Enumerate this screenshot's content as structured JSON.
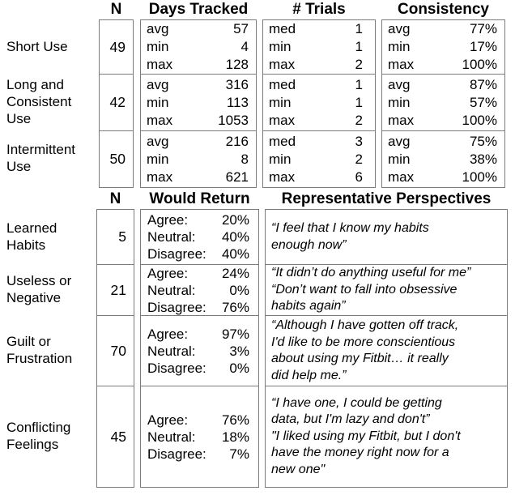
{
  "colors": {
    "background": "#ffffff",
    "text": "#000000",
    "border": "#7b7b7b"
  },
  "table1": {
    "headers": {
      "n": "N",
      "days": "Days Tracked",
      "trials": "# Trials",
      "consistency": "Consistency"
    },
    "rows": [
      {
        "label": "Short Use",
        "n": "49",
        "days": [
          {
            "k": "avg",
            "v": "57"
          },
          {
            "k": "min",
            "v": "4"
          },
          {
            "k": "max",
            "v": "128"
          }
        ],
        "trials": [
          {
            "k": "med",
            "v": "1"
          },
          {
            "k": "min",
            "v": "1"
          },
          {
            "k": "max",
            "v": "2"
          }
        ],
        "consistency": [
          {
            "k": "avg",
            "v": "77%"
          },
          {
            "k": "min",
            "v": "17%"
          },
          {
            "k": "max",
            "v": "100%"
          }
        ]
      },
      {
        "label": "Long and Consistent Use",
        "n": "42",
        "days": [
          {
            "k": "avg",
            "v": "316"
          },
          {
            "k": "min",
            "v": "113"
          },
          {
            "k": "max",
            "v": "1053"
          }
        ],
        "trials": [
          {
            "k": "med",
            "v": "1"
          },
          {
            "k": "min",
            "v": "1"
          },
          {
            "k": "max",
            "v": "2"
          }
        ],
        "consistency": [
          {
            "k": "avg",
            "v": "87%"
          },
          {
            "k": "min",
            "v": "57%"
          },
          {
            "k": "max",
            "v": "100%"
          }
        ]
      },
      {
        "label": "Intermittent Use",
        "n": "50",
        "days": [
          {
            "k": "avg",
            "v": "216"
          },
          {
            "k": "min",
            "v": "8"
          },
          {
            "k": "max",
            "v": "621"
          }
        ],
        "trials": [
          {
            "k": "med",
            "v": "3"
          },
          {
            "k": "min",
            "v": "2"
          },
          {
            "k": "max",
            "v": "6"
          }
        ],
        "consistency": [
          {
            "k": "avg",
            "v": "75%"
          },
          {
            "k": "min",
            "v": "38%"
          },
          {
            "k": "max",
            "v": "100%"
          }
        ]
      }
    ]
  },
  "table2": {
    "headers": {
      "n": "N",
      "would_return": "Would Return",
      "perspectives": "Representative Perspectives"
    },
    "rows": [
      {
        "label": "Learned Habits",
        "n": "5",
        "would_return": [
          {
            "k": "Agree:",
            "v": "20%"
          },
          {
            "k": "Neutral:",
            "v": "40%"
          },
          {
            "k": "Disagree:",
            "v": "40%"
          }
        ],
        "quotes": [
          [
            "“I feel that I know my habits",
            "enough now”"
          ]
        ]
      },
      {
        "label": "Useless or Negative",
        "n": "21",
        "would_return": [
          {
            "k": "Agree:",
            "v": "24%"
          },
          {
            "k": "Neutral:",
            "v": "0%"
          },
          {
            "k": "Disagree:",
            "v": "76%"
          }
        ],
        "quotes": [
          [
            "“It didn’t do anything useful for me”"
          ],
          [
            "“Don’t want to fall into obsessive",
            "habits again”"
          ]
        ]
      },
      {
        "label": "Guilt or Frustration",
        "n": "70",
        "would_return": [
          {
            "k": "Agree:",
            "v": "97%"
          },
          {
            "k": "Neutral:",
            "v": "3%"
          },
          {
            "k": "Disagree:",
            "v": "0%"
          }
        ],
        "quotes": [
          [
            "“Although I have gotten off track,",
            "I'd like to be more conscientious",
            "about using my Fitbit… it really",
            "did help me.”"
          ]
        ]
      },
      {
        "label": "Conflicting Feelings",
        "n": "45",
        "would_return": [
          {
            "k": "Agree:",
            "v": "76%"
          },
          {
            "k": "Neutral:",
            "v": "18%"
          },
          {
            "k": "Disagree:",
            "v": "7%"
          }
        ],
        "quotes": [
          [
            "“I have one, I could be getting",
            "data, but I'm lazy and don't”"
          ],
          [
            "\"I liked using my Fitbit, but I don't",
            "have the money right now for a",
            "new one\""
          ]
        ]
      }
    ]
  }
}
